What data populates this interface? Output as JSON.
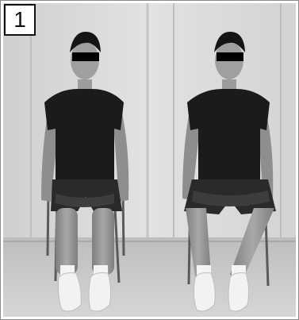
{
  "figure": {
    "panel_label": "1",
    "colors": {
      "wall": "#d9d9d9",
      "floor": "#c6c6c6",
      "shirt": "#1b1b1b",
      "skin": "#9a9a9a",
      "shoe": "#f2f2f2",
      "band": "#3a3a3a",
      "censor_bar": "#000000"
    }
  }
}
